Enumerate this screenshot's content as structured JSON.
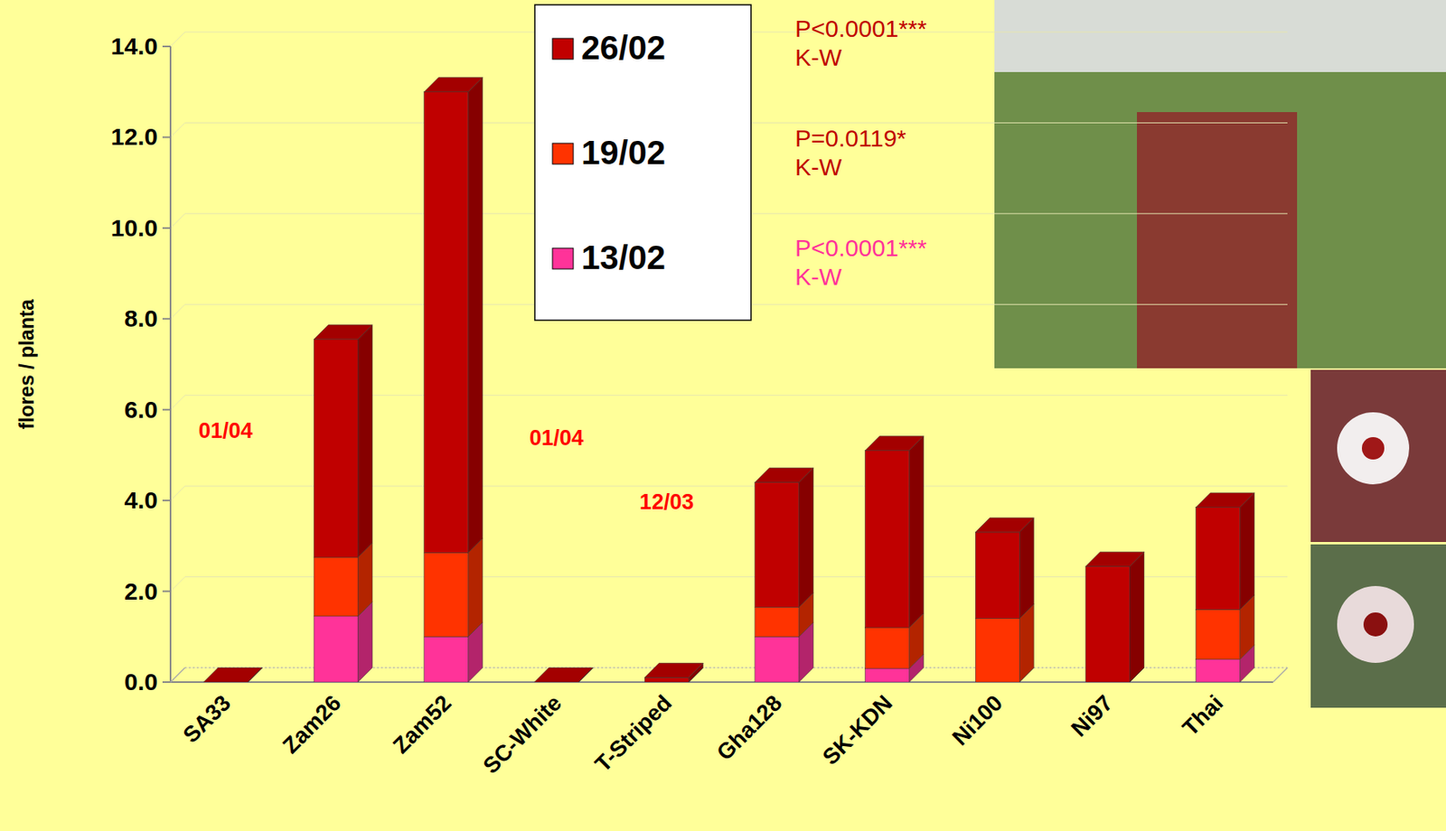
{
  "chart_data": {
    "type": "bar",
    "stacked": true,
    "y_label": "flores / planta",
    "categories": [
      "SA33",
      "Zam26",
      "Zam52",
      "SC-White",
      "T-Striped",
      "Gha128",
      "SK-KDN",
      "Ni100",
      "Ni97",
      "Thai"
    ],
    "series": [
      {
        "name": "13/02",
        "color": "#ff3399",
        "values": [
          0,
          1.45,
          1.0,
          0,
          0,
          1.0,
          0.3,
          0,
          0,
          0.5
        ]
      },
      {
        "name": "19/02",
        "color": "#ff3300",
        "values": [
          0,
          1.3,
          1.85,
          0,
          0,
          0.65,
          0.9,
          1.4,
          0,
          1.1
        ]
      },
      {
        "name": "26/02",
        "color": "#c00000",
        "values": [
          0,
          4.8,
          10.15,
          0,
          0.1,
          2.75,
          3.9,
          1.9,
          2.55,
          2.25
        ]
      }
    ],
    "ylim": [
      0,
      14
    ],
    "yticks": [
      {
        "value": 0,
        "label": "0.0"
      },
      {
        "value": 2,
        "label": "2.0"
      },
      {
        "value": 4,
        "label": "4.0"
      },
      {
        "value": 6,
        "label": "6.0"
      },
      {
        "value": 8,
        "label": "8.0"
      },
      {
        "value": 10,
        "label": "10.0"
      },
      {
        "value": 12,
        "label": "12.0"
      },
      {
        "value": 14,
        "label": "14.0"
      }
    ],
    "grid": true,
    "legend": "top",
    "annotations": [
      {
        "text": "01/04",
        "category": "SA33"
      },
      {
        "text": "01/04",
        "category": "SC-White"
      },
      {
        "text": "12/03",
        "category": "T-Striped"
      }
    ],
    "tests": [
      {
        "series": "26/02",
        "text": "P<0.0001***",
        "method": "K-W"
      },
      {
        "series": "19/02",
        "text": "P=0.0119*",
        "method": "K-W"
      },
      {
        "series": "13/02",
        "text": "P<0.0001***",
        "method": "K-W"
      }
    ]
  }
}
